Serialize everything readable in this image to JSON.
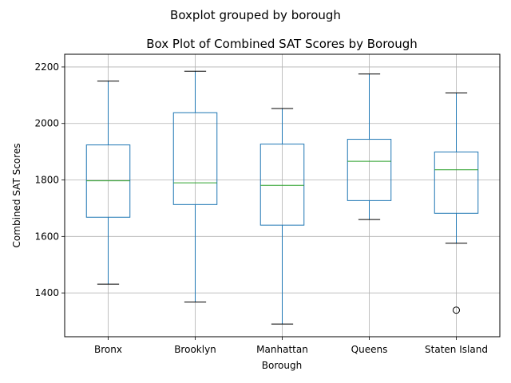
{
  "chart_data": {
    "type": "boxplot",
    "suptitle": "Boxplot grouped by borough",
    "title": "Box Plot of Combined SAT Scores by Borough",
    "xlabel": "Borough",
    "ylabel": "Combined SAT Scores",
    "ylim": [
      1245,
      2245
    ],
    "yticks": [
      1400,
      1600,
      1800,
      2000,
      2200
    ],
    "grid": true,
    "colors": {
      "box": "#1f77b4",
      "median": "#2ca02c",
      "cap": "#000000",
      "grid": "#b0b0b0",
      "outlier": "#000000"
    },
    "categories": [
      "Bronx",
      "Brooklyn",
      "Manhattan",
      "Queens",
      "Staten Island"
    ],
    "boxes": [
      {
        "whislo": 1431,
        "q1": 1668,
        "med": 1797,
        "q3": 1924,
        "whishi": 2150,
        "fliers": []
      },
      {
        "whislo": 1368,
        "q1": 1713,
        "med": 1790,
        "q3": 2038,
        "whishi": 2185,
        "fliers": []
      },
      {
        "whislo": 1290,
        "q1": 1640,
        "med": 1781,
        "q3": 1927,
        "whishi": 2053,
        "fliers": []
      },
      {
        "whislo": 1660,
        "q1": 1727,
        "med": 1866,
        "q3": 1944,
        "whishi": 2175,
        "fliers": []
      },
      {
        "whislo": 1576,
        "q1": 1682,
        "med": 1836,
        "q3": 1899,
        "whishi": 2108,
        "fliers": [
          1339
        ]
      }
    ]
  }
}
